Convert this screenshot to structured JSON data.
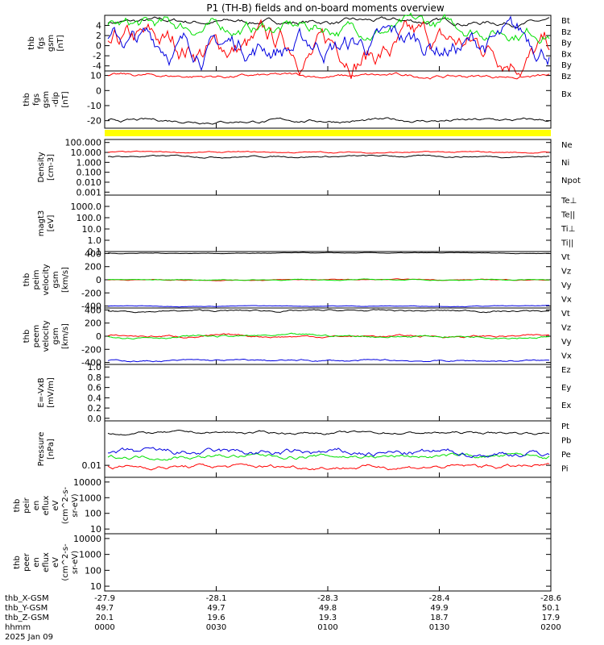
{
  "title": "P1 (TH-B) fields and on-board moments overview",
  "bar_color": "#ffff00",
  "colors": {
    "black": "#000000",
    "red": "#ff0000",
    "green": "#00e000",
    "blue": "#0000e0"
  },
  "chart_data": [
    {
      "type": "line",
      "ylabel": [
        "thb",
        "fgs",
        "gsm",
        "[nT]"
      ],
      "yticks": [
        "4",
        "2",
        "0",
        "-2",
        "-4"
      ],
      "ylim": [
        -5,
        6
      ],
      "log": false,
      "series": [
        {
          "name": "Bt",
          "color": "black",
          "level": 4.7,
          "noise": 0.3
        },
        {
          "name": "Bz",
          "color": "red",
          "level": -0.5,
          "noise": 1.5
        },
        {
          "name": "By",
          "color": "green",
          "level": 3.5,
          "noise": 0.8
        },
        {
          "name": "Bx",
          "color": "blue",
          "level": 0.2,
          "noise": 1.4
        },
        {
          "name": "By",
          "color": "green",
          "level": null,
          "noise": 0
        }
      ]
    },
    {
      "type": "line",
      "ylabel": [
        "thb",
        "fgs",
        "gsm",
        "-dip",
        "[nT]"
      ],
      "yticks": [
        "10",
        "0",
        "-10",
        "-20"
      ],
      "ylim": [
        -25,
        13
      ],
      "log": false,
      "series": [
        {
          "name": "Bz",
          "color": "red",
          "level": 9.5,
          "noise": 0.7
        },
        {
          "name": "Bx",
          "color": "black",
          "level": -20,
          "noise": 0.6
        }
      ]
    },
    {
      "type": "line",
      "ylabel": [
        "Density",
        "[cm-3]"
      ],
      "yticks": [
        "100.000",
        "10.000",
        "1.000",
        "0.100",
        "0.010",
        "0.001"
      ],
      "ylim": [
        0.0005,
        200
      ],
      "log": true,
      "series": [
        {
          "name": "Ne",
          "color": "red",
          "level": 10,
          "noise": 0.08
        },
        {
          "name": "Ni",
          "color": "black",
          "level": 4,
          "noise": 0.1
        },
        {
          "name": "Npot",
          "color": "blue",
          "level": null,
          "noise": 0
        }
      ]
    },
    {
      "type": "line",
      "ylabel": [
        "magt3",
        "[eV]"
      ],
      "yticks": [
        "1000.0",
        "100.0",
        "10.0",
        "1.0",
        "0.1"
      ],
      "ylim": [
        0.1,
        10000
      ],
      "log": true,
      "series": [
        {
          "name": "Te⊥",
          "color": "red",
          "level": null,
          "noise": 0
        },
        {
          "name": "Te||",
          "color": "black",
          "level": null,
          "noise": 0
        },
        {
          "name": "Ti⊥",
          "color": "blue",
          "level": null,
          "noise": 0
        },
        {
          "name": "Ti||",
          "color": "green",
          "level": null,
          "noise": 0
        }
      ]
    },
    {
      "type": "line",
      "ylabel": [
        "thb",
        "peim",
        "velocity",
        "gsm",
        "[km/s]"
      ],
      "yticks": [
        "400",
        "200",
        "0",
        "-200",
        "-400"
      ],
      "ylim": [
        -430,
        430
      ],
      "log": false,
      "series": [
        {
          "name": "Vt",
          "color": "black",
          "level": 405,
          "noise": 3
        },
        {
          "name": "Vz",
          "color": "red",
          "level": 0,
          "noise": 4
        },
        {
          "name": "Vy",
          "color": "green",
          "level": 0,
          "noise": 4
        },
        {
          "name": "Vx",
          "color": "blue",
          "level": -400,
          "noise": 3
        }
      ]
    },
    {
      "type": "line",
      "ylabel": [
        "thb",
        "peem",
        "velocity",
        "gsm",
        "[km/s]"
      ],
      "yticks": [
        "400",
        "200",
        "0",
        "-200",
        "-400"
      ],
      "ylim": [
        -430,
        430
      ],
      "log": false,
      "series": [
        {
          "name": "Vt",
          "color": "black",
          "level": 385,
          "noise": 8
        },
        {
          "name": "Vz",
          "color": "red",
          "level": 0,
          "noise": 10
        },
        {
          "name": "Vy",
          "color": "green",
          "level": 0,
          "noise": 10
        },
        {
          "name": "Vx",
          "color": "blue",
          "level": -375,
          "noise": 8
        }
      ]
    },
    {
      "type": "line",
      "ylabel": [
        "E=-VxB",
        "[mV/m]"
      ],
      "yticks": [
        "1.0",
        "0.8",
        "0.6",
        "0.4",
        "0.2",
        "0.0"
      ],
      "ylim": [
        -0.05,
        1.05
      ],
      "log": false,
      "series": [
        {
          "name": "Ez",
          "color": "red",
          "level": null,
          "noise": 0
        },
        {
          "name": "Ey",
          "color": "green",
          "level": null,
          "noise": 0
        },
        {
          "name": "Ex",
          "color": "blue",
          "level": null,
          "noise": 0
        }
      ]
    },
    {
      "type": "line",
      "ylabel": [
        "Pressure",
        "[nPa]"
      ],
      "yticks": [
        "0.01"
      ],
      "ytickvals": [
        0.01
      ],
      "ylim": [
        0.004,
        0.3
      ],
      "log": true,
      "series": [
        {
          "name": "Pt",
          "color": "black",
          "level": 0.12,
          "noise": 0.05
        },
        {
          "name": "Pb",
          "color": "red",
          "level": 0.009,
          "noise": 0.08
        },
        {
          "name": "Pe",
          "color": "green",
          "level": 0.02,
          "noise": 0.08
        },
        {
          "name": "Pi",
          "color": "blue",
          "level": 0.025,
          "noise": 0.12
        }
      ]
    },
    {
      "type": "line",
      "ylabel": [
        "thb",
        "peir",
        "en",
        "eflux",
        "eV",
        "(cm^2-s-",
        "sr-eV)"
      ],
      "yticks": [
        "10000",
        "1000",
        "100",
        "10"
      ],
      "ylim": [
        5,
        20000
      ],
      "log": true,
      "series": []
    },
    {
      "type": "line",
      "ylabel": [
        "thb",
        "peer",
        "en",
        "eflux",
        "eV",
        "(cm^2-s-",
        "sr-eV)"
      ],
      "yticks": [
        "10000",
        "1000",
        "100",
        "10"
      ],
      "ylim": [
        5,
        20000
      ],
      "log": true,
      "series": []
    }
  ],
  "xaxis": {
    "rows": [
      {
        "label": "thb_X-GSM",
        "values": [
          "-27.9",
          "-28.1",
          "-28.3",
          "-28.4",
          "-28.6"
        ]
      },
      {
        "label": "thb_Y-GSM",
        "values": [
          "49.7",
          "49.7",
          "49.8",
          "49.9",
          "50.1"
        ]
      },
      {
        "label": "thb_Z-GSM",
        "values": [
          "20.1",
          "19.6",
          "19.3",
          "18.7",
          "17.9"
        ]
      },
      {
        "label": "hhmm",
        "values": [
          "0000",
          "0030",
          "0100",
          "0130",
          "0200"
        ]
      }
    ],
    "date": "2025 Jan 09"
  }
}
